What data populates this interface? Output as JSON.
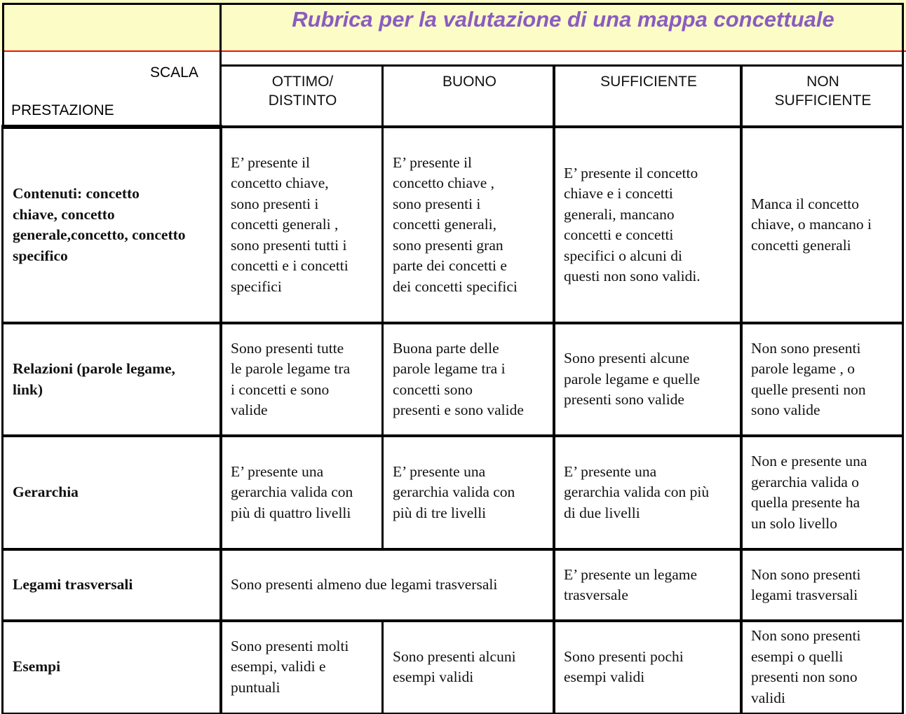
{
  "title": "Rubrica per la valutazione di una mappa concettuale",
  "corner": {
    "scala": "SCALA",
    "prestazione": "PRESTAZIONE"
  },
  "columns": [
    "OTTIMO/\nDISTINTO",
    "BUONO",
    "SUFFICIENTE",
    "NON\nSUFFICIENTE"
  ],
  "rows": [
    {
      "label": "Contenuti: concetto\nchiave, concetto\ngenerale,concetto, concetto\nspecifico",
      "cells": [
        "E’ presente il\nconcetto chiave,\nsono presenti i\nconcetti generali ,\nsono presenti tutti i\nconcetti e i concetti\nspecifici",
        "E’ presente il\nconcetto chiave ,\nsono presenti i\nconcetti generali,\nsono presenti gran\nparte dei concetti e\ndei concetti specifici",
        "E’ presente il concetto\nchiave e i concetti\ngenerali, mancano\nconcetti e concetti\nspecifici o alcuni di\nquesti non sono validi.",
        "Manca il concetto\nchiave, o mancano i\nconcetti generali"
      ]
    },
    {
      "label": "Relazioni (parole legame,\nlink)",
      "cells": [
        "Sono presenti tutte\nle parole legame tra\ni concetti e sono\nvalide",
        "Buona parte delle\nparole legame tra i\nconcetti sono\npresenti e sono valide",
        "Sono presenti alcune\nparole legame e quelle\npresenti sono valide",
        "Non sono presenti\nparole legame , o\nquelle presenti non\nsono valide"
      ]
    },
    {
      "label": "Gerarchia",
      "cells": [
        "E’ presente una\ngerarchia valida con\npiù di quattro livelli",
        "E’ presente una\ngerarchia valida con\npiù di tre livelli",
        "E’ presente una\ngerarchia valida con più\ndi due livelli",
        "Non e presente una\ngerarchia valida o\nquella presente ha\nun solo livello"
      ]
    },
    {
      "label": "Legami trasversali",
      "cells": [
        "Sono presenti almeno due legami trasversali",
        "E’ presente un legame\ntrasversale",
        "Non sono presenti\nlegami trasversali"
      ]
    },
    {
      "label": "Esempi",
      "cells": [
        "Sono presenti molti\nesempi, validi e\npuntuali",
        "Sono presenti alcuni\nesempi validi",
        "Sono presenti pochi\nesempi validi",
        "Non sono presenti\nesempi o quelli\npresenti non sono\nvalidi"
      ]
    }
  ],
  "colors": {
    "title": "#8a5cc0",
    "title_bg": "#fcfcc6",
    "rule": "#f01010"
  }
}
